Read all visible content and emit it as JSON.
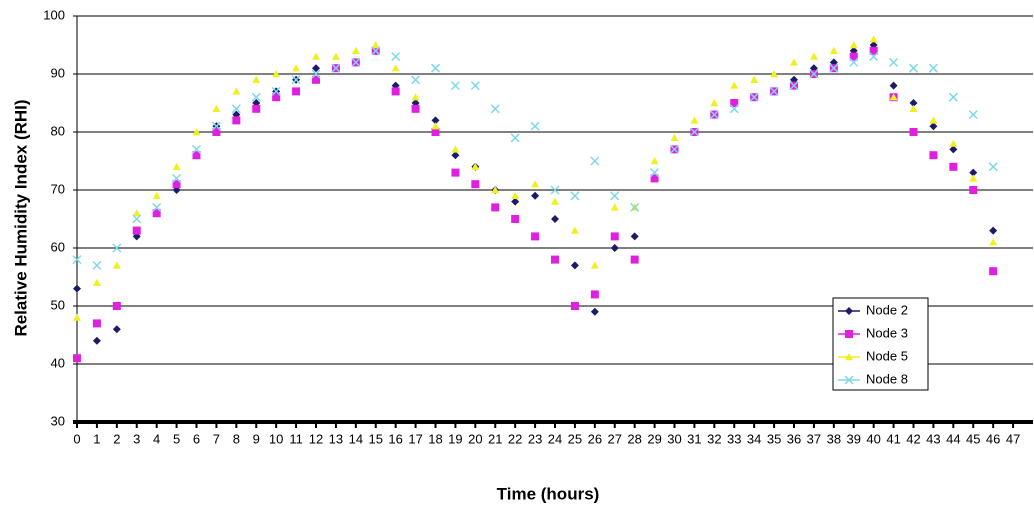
{
  "chart_data": {
    "type": "scatter",
    "xlabel": "Time (hours)",
    "ylabel": "Relative Humidity Index (RHI)",
    "x": [
      0,
      1,
      2,
      3,
      4,
      5,
      6,
      7,
      8,
      9,
      10,
      11,
      12,
      13,
      14,
      15,
      16,
      17,
      18,
      19,
      20,
      21,
      22,
      23,
      24,
      25,
      26,
      27,
      28,
      29,
      30,
      31,
      32,
      33,
      34,
      35,
      36,
      37,
      38,
      39,
      40,
      41,
      42,
      43,
      44,
      45,
      46
    ],
    "series": [
      {
        "name": "Node 2",
        "color": "#1c1c66",
        "marker": "diamond",
        "values": [
          53,
          44,
          46,
          62,
          66,
          70,
          76,
          81,
          83,
          85,
          87,
          89,
          91,
          91,
          92,
          94,
          88,
          85,
          82,
          76,
          74,
          70,
          68,
          69,
          65,
          57,
          49,
          60,
          62,
          72,
          77,
          80,
          83,
          85,
          86,
          87,
          89,
          91,
          92,
          94,
          95,
          88,
          85,
          81,
          77,
          73,
          63
        ]
      },
      {
        "name": "Node 3",
        "color": "#e020e0",
        "marker": "square",
        "values": [
          41,
          47,
          50,
          63,
          66,
          71,
          76,
          80,
          82,
          84,
          86,
          87,
          89,
          91,
          92,
          94,
          87,
          84,
          80,
          73,
          71,
          67,
          65,
          62,
          58,
          50,
          52,
          62,
          58,
          72,
          77,
          80,
          83,
          85,
          86,
          87,
          88,
          90,
          91,
          93,
          94,
          86,
          80,
          76,
          74,
          70,
          56
        ]
      },
      {
        "name": "Node 5",
        "color": "#f0f020",
        "marker": "triangle",
        "values": [
          48,
          54,
          57,
          66,
          69,
          74,
          80,
          84,
          87,
          89,
          90,
          91,
          93,
          93,
          94,
          95,
          91,
          86,
          81,
          77,
          74,
          70,
          69,
          71,
          68,
          63,
          57,
          67,
          67,
          75,
          79,
          82,
          85,
          88,
          89,
          90,
          92,
          93,
          94,
          95,
          96,
          86,
          84,
          82,
          78,
          72,
          61
        ]
      },
      {
        "name": "Node 8",
        "color": "#7fd8e8",
        "marker": "x",
        "values": [
          58,
          57,
          60,
          65,
          67,
          72,
          77,
          81,
          84,
          86,
          87,
          89,
          90,
          91,
          92,
          94,
          93,
          89,
          91,
          88,
          88,
          84,
          79,
          81,
          70,
          69,
          75,
          69,
          67,
          73,
          77,
          80,
          83,
          84,
          86,
          87,
          88,
          90,
          91,
          92,
          93,
          92,
          91,
          91,
          86,
          83,
          74
        ]
      }
    ],
    "xlim": [
      0,
      48
    ],
    "xticks": [
      0,
      1,
      2,
      3,
      4,
      5,
      6,
      7,
      8,
      9,
      10,
      11,
      12,
      13,
      14,
      15,
      16,
      17,
      18,
      19,
      20,
      21,
      22,
      23,
      24,
      25,
      26,
      27,
      28,
      29,
      30,
      31,
      32,
      33,
      34,
      35,
      36,
      37,
      38,
      39,
      40,
      41,
      42,
      43,
      44,
      45,
      46,
      47
    ],
    "ylim": [
      30,
      100
    ],
    "yticks": [
      30,
      40,
      50,
      60,
      70,
      80,
      90,
      100
    ],
    "grid": true,
    "legend": "right"
  }
}
